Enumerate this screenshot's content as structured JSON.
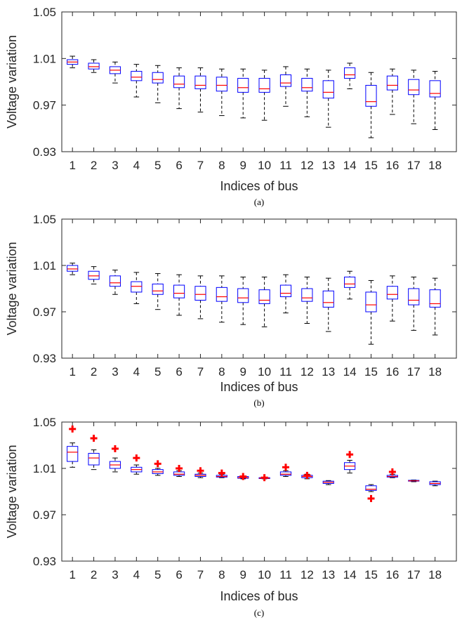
{
  "chart_data": [
    {
      "type": "boxplot",
      "caption": "(a)",
      "xlabel": "Indices of bus",
      "ylabel": "Voltage variation",
      "categories": [
        "1",
        "2",
        "3",
        "4",
        "5",
        "6",
        "7",
        "8",
        "9",
        "10",
        "11",
        "12",
        "13",
        "14",
        "15",
        "16",
        "17",
        "18"
      ],
      "ylim": [
        0.93,
        1.05
      ],
      "yticks": [
        "0.93",
        "0.97",
        "1.01",
        "1.05"
      ],
      "grid": false,
      "box_color": "#0000ff",
      "median_color": "#ff0000",
      "whisker_color": "#000000",
      "boxes": [
        {
          "min": 1.002,
          "q1": 1.005,
          "median": 1.007,
          "q3": 1.009,
          "max": 1.012
        },
        {
          "min": 0.998,
          "q1": 1.001,
          "median": 1.003,
          "q3": 1.006,
          "max": 1.009
        },
        {
          "min": 0.989,
          "q1": 0.997,
          "median": 1.0,
          "q3": 1.003,
          "max": 1.007
        },
        {
          "min": 0.977,
          "q1": 0.991,
          "median": 0.994,
          "q3": 0.999,
          "max": 1.005
        },
        {
          "min": 0.972,
          "q1": 0.989,
          "median": 0.992,
          "q3": 0.998,
          "max": 1.004
        },
        {
          "min": 0.967,
          "q1": 0.985,
          "median": 0.988,
          "q3": 0.995,
          "max": 1.002
        },
        {
          "min": 0.964,
          "q1": 0.984,
          "median": 0.987,
          "q3": 0.995,
          "max": 1.002
        },
        {
          "min": 0.961,
          "q1": 0.982,
          "median": 0.987,
          "q3": 0.994,
          "max": 1.001
        },
        {
          "min": 0.959,
          "q1": 0.981,
          "median": 0.985,
          "q3": 0.993,
          "max": 1.001
        },
        {
          "min": 0.957,
          "q1": 0.981,
          "median": 0.984,
          "q3": 0.993,
          "max": 1.0
        },
        {
          "min": 0.969,
          "q1": 0.986,
          "median": 0.989,
          "q3": 0.996,
          "max": 1.003
        },
        {
          "min": 0.96,
          "q1": 0.982,
          "median": 0.985,
          "q3": 0.993,
          "max": 1.001
        },
        {
          "min": 0.951,
          "q1": 0.976,
          "median": 0.981,
          "q3": 0.991,
          "max": 1.0
        },
        {
          "min": 0.984,
          "q1": 0.993,
          "median": 0.996,
          "q3": 1.002,
          "max": 1.006
        },
        {
          "min": 0.942,
          "q1": 0.969,
          "median": 0.973,
          "q3": 0.987,
          "max": 0.998
        },
        {
          "min": 0.962,
          "q1": 0.983,
          "median": 0.987,
          "q3": 0.995,
          "max": 1.001
        },
        {
          "min": 0.954,
          "q1": 0.979,
          "median": 0.983,
          "q3": 0.992,
          "max": 1.0
        },
        {
          "min": 0.949,
          "q1": 0.977,
          "median": 0.98,
          "q3": 0.991,
          "max": 0.999
        }
      ],
      "outliers": []
    },
    {
      "type": "boxplot",
      "caption": "(b)",
      "xlabel": "Indices of bus",
      "ylabel": "Voltage variation",
      "categories": [
        "1",
        "2",
        "3",
        "4",
        "5",
        "6",
        "7",
        "8",
        "9",
        "10",
        "11",
        "12",
        "13",
        "14",
        "15",
        "16",
        "17",
        "18"
      ],
      "ylim": [
        0.93,
        1.05
      ],
      "yticks": [
        "0.93",
        "0.97",
        "1.01",
        "1.05"
      ],
      "grid": false,
      "box_color": "#0000ff",
      "median_color": "#ff0000",
      "whisker_color": "#000000",
      "boxes": [
        {
          "min": 1.002,
          "q1": 1.005,
          "median": 1.007,
          "q3": 1.01,
          "max": 1.012
        },
        {
          "min": 0.994,
          "q1": 0.998,
          "median": 1.001,
          "q3": 1.005,
          "max": 1.009
        },
        {
          "min": 0.985,
          "q1": 0.992,
          "median": 0.995,
          "q3": 1.001,
          "max": 1.006
        },
        {
          "min": 0.977,
          "q1": 0.987,
          "median": 0.992,
          "q3": 0.996,
          "max": 1.004
        },
        {
          "min": 0.972,
          "q1": 0.985,
          "median": 0.988,
          "q3": 0.994,
          "max": 1.003
        },
        {
          "min": 0.967,
          "q1": 0.982,
          "median": 0.986,
          "q3": 0.993,
          "max": 1.002
        },
        {
          "min": 0.964,
          "q1": 0.98,
          "median": 0.985,
          "q3": 0.992,
          "max": 1.001
        },
        {
          "min": 0.961,
          "q1": 0.979,
          "median": 0.983,
          "q3": 0.991,
          "max": 1.001
        },
        {
          "min": 0.959,
          "q1": 0.978,
          "median": 0.982,
          "q3": 0.99,
          "max": 1.0
        },
        {
          "min": 0.957,
          "q1": 0.977,
          "median": 0.98,
          "q3": 0.989,
          "max": 1.0
        },
        {
          "min": 0.969,
          "q1": 0.983,
          "median": 0.986,
          "q3": 0.993,
          "max": 1.002
        },
        {
          "min": 0.96,
          "q1": 0.979,
          "median": 0.982,
          "q3": 0.99,
          "max": 1.0
        },
        {
          "min": 0.953,
          "q1": 0.974,
          "median": 0.978,
          "q3": 0.988,
          "max": 0.999
        },
        {
          "min": 0.981,
          "q1": 0.991,
          "median": 0.994,
          "q3": 1.0,
          "max": 1.005
        },
        {
          "min": 0.942,
          "q1": 0.97,
          "median": 0.976,
          "q3": 0.987,
          "max": 0.997
        },
        {
          "min": 0.962,
          "q1": 0.981,
          "median": 0.985,
          "q3": 0.992,
          "max": 1.001
        },
        {
          "min": 0.954,
          "q1": 0.976,
          "median": 0.98,
          "q3": 0.99,
          "max": 1.0
        },
        {
          "min": 0.95,
          "q1": 0.974,
          "median": 0.977,
          "q3": 0.989,
          "max": 0.999
        }
      ],
      "outliers": []
    },
    {
      "type": "boxplot",
      "caption": "(c)",
      "xlabel": "Indices of bus",
      "ylabel": "Voltage variation",
      "categories": [
        "1",
        "2",
        "3",
        "4",
        "5",
        "6",
        "7",
        "8",
        "9",
        "10",
        "11",
        "12",
        "13",
        "14",
        "15",
        "16",
        "17",
        "18"
      ],
      "ylim": [
        0.93,
        1.05
      ],
      "yticks": [
        "0.93",
        "0.97",
        "1.01",
        "1.05"
      ],
      "grid": false,
      "box_color": "#0000ff",
      "median_color": "#ff0000",
      "whisker_color": "#000000",
      "boxes": [
        {
          "min": 1.011,
          "q1": 1.016,
          "median": 1.024,
          "q3": 1.029,
          "max": 1.032
        },
        {
          "min": 1.009,
          "q1": 1.013,
          "median": 1.019,
          "q3": 1.023,
          "max": 1.026
        },
        {
          "min": 1.007,
          "q1": 1.01,
          "median": 1.013,
          "q3": 1.016,
          "max": 1.019
        },
        {
          "min": 1.005,
          "q1": 1.007,
          "median": 1.009,
          "q3": 1.011,
          "max": 1.013
        },
        {
          "min": 1.004,
          "q1": 1.0055,
          "median": 1.007,
          "q3": 1.009,
          "max": 1.01
        },
        {
          "min": 1.003,
          "q1": 1.004,
          "median": 1.005,
          "q3": 1.007,
          "max": 1.008
        },
        {
          "min": 1.002,
          "q1": 1.003,
          "median": 1.004,
          "q3": 1.005,
          "max": 1.006
        },
        {
          "min": 1.002,
          "q1": 1.0025,
          "median": 1.003,
          "q3": 1.004,
          "max": 1.005
        },
        {
          "min": 1.001,
          "q1": 1.0015,
          "median": 1.002,
          "q3": 1.003,
          "max": 1.003
        },
        {
          "min": 1.001,
          "q1": 1.0012,
          "median": 1.0015,
          "q3": 1.002,
          "max": 1.002
        },
        {
          "min": 1.003,
          "q1": 1.004,
          "median": 1.005,
          "q3": 1.007,
          "max": 1.008
        },
        {
          "min": 1.001,
          "q1": 1.002,
          "median": 1.003,
          "q3": 1.004,
          "max": 1.005
        },
        {
          "min": 0.996,
          "q1": 0.997,
          "median": 0.998,
          "q3": 0.999,
          "max": 0.9995
        },
        {
          "min": 1.006,
          "q1": 1.009,
          "median": 1.012,
          "q3": 1.015,
          "max": 1.017
        },
        {
          "min": 0.99,
          "q1": 0.991,
          "median": 0.992,
          "q3": 0.995,
          "max": 0.996
        },
        {
          "min": 1.002,
          "q1": 1.0025,
          "median": 1.003,
          "q3": 1.004,
          "max": 1.005
        },
        {
          "min": 0.9985,
          "q1": 0.999,
          "median": 0.9993,
          "q3": 0.9997,
          "max": 1.0
        },
        {
          "min": 0.995,
          "q1": 0.996,
          "median": 0.997,
          "q3": 0.9985,
          "max": 0.999
        }
      ],
      "outliers": [
        {
          "category": "1",
          "value": 1.044
        },
        {
          "category": "2",
          "value": 1.036
        },
        {
          "category": "3",
          "value": 1.027
        },
        {
          "category": "4",
          "value": 1.019
        },
        {
          "category": "5",
          "value": 1.014
        },
        {
          "category": "6",
          "value": 1.01
        },
        {
          "category": "7",
          "value": 1.008
        },
        {
          "category": "8",
          "value": 1.006
        },
        {
          "category": "9",
          "value": 1.003
        },
        {
          "category": "10",
          "value": 1.002
        },
        {
          "category": "11",
          "value": 1.011
        },
        {
          "category": "12",
          "value": 1.004
        },
        {
          "category": "14",
          "value": 1.022
        },
        {
          "category": "15",
          "value": 0.984
        },
        {
          "category": "16",
          "value": 1.007
        }
      ]
    }
  ]
}
